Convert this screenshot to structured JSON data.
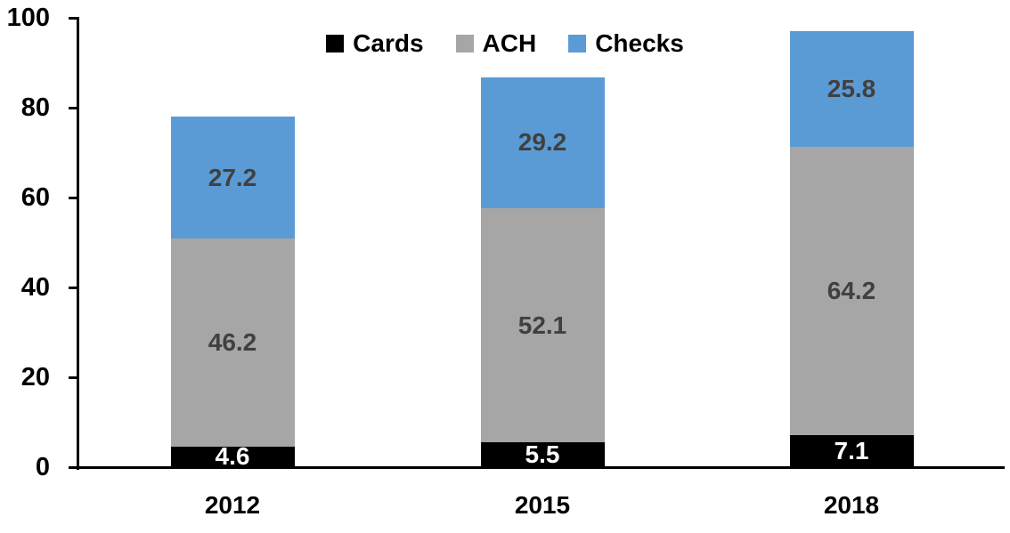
{
  "chart_data": {
    "type": "bar",
    "stacked": true,
    "title": "",
    "xlabel": "",
    "ylabel": "",
    "categories": [
      "2012",
      "2015",
      "2018"
    ],
    "series": [
      {
        "name": "Cards",
        "color": "#000000",
        "label_color": "#ffffff",
        "values": [
          4.6,
          5.5,
          7.1
        ]
      },
      {
        "name": "ACH",
        "color": "#a6a6a6",
        "label_color": "#404040",
        "values": [
          46.2,
          52.1,
          64.2
        ]
      },
      {
        "name": "Checks",
        "color": "#5b9bd5",
        "label_color": "#404040",
        "values": [
          27.2,
          29.2,
          25.8
        ]
      }
    ],
    "totals": [
      78.0,
      86.8,
      97.1
    ],
    "ylim": [
      0,
      100
    ],
    "yticks": [
      0,
      20,
      40,
      60,
      80,
      100
    ],
    "grid": false,
    "legend_position": "top-center",
    "legend_labels": [
      "Cards",
      "ACH",
      "Checks"
    ],
    "axis_color": "#000000"
  }
}
